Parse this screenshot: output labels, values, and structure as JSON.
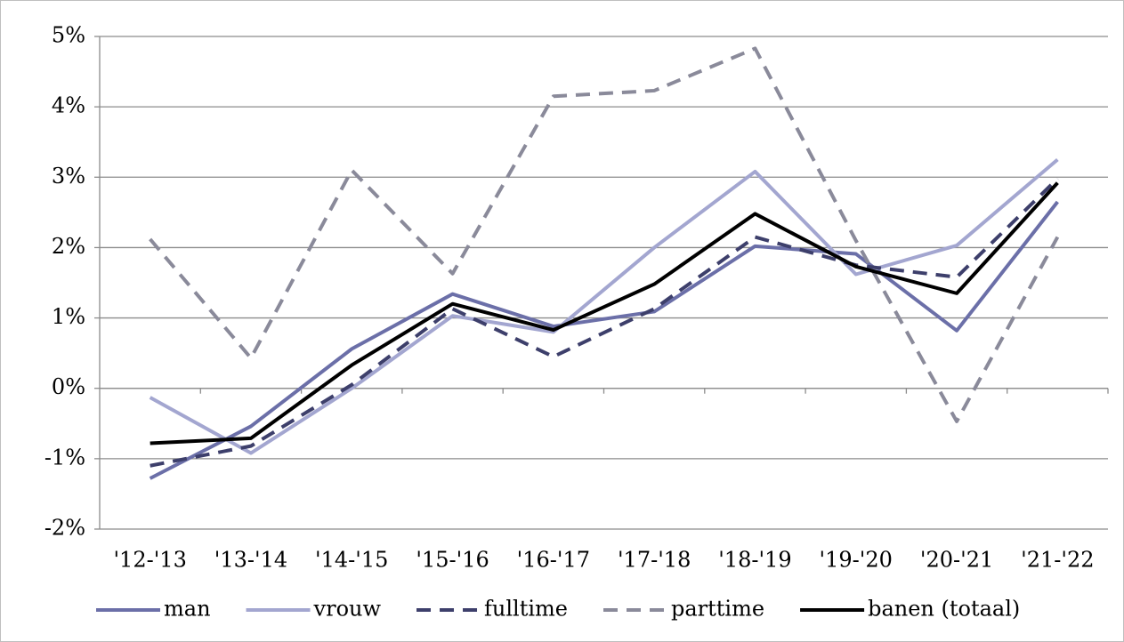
{
  "chart_data": {
    "type": "line",
    "categories": [
      "'12-'13",
      "'13-'14",
      "'14-'15",
      "'15-'16",
      "'16-'17",
      "'17-'18",
      "'18-'19",
      "'19-'20",
      "'20-'21",
      "'21-'22"
    ],
    "series": [
      {
        "name": "man",
        "color": "#6b6fa8",
        "style": "solid",
        "values": [
          -1.28,
          -0.54,
          0.56,
          1.34,
          0.88,
          1.09,
          2.02,
          1.91,
          0.82,
          2.65
        ]
      },
      {
        "name": "vrouw",
        "color": "#a3a6d0",
        "style": "solid",
        "values": [
          -0.13,
          -0.92,
          0.0,
          1.03,
          0.8,
          2.0,
          3.08,
          1.62,
          2.03,
          3.25
        ]
      },
      {
        "name": "fulltime",
        "color": "#3d3f6b",
        "style": "dashed",
        "values": [
          -1.1,
          -0.82,
          0.05,
          1.13,
          0.45,
          1.13,
          2.15,
          1.75,
          1.58,
          2.98
        ]
      },
      {
        "name": "parttime",
        "color": "#8a8a9a",
        "style": "dashed",
        "values": [
          2.12,
          0.43,
          3.1,
          1.63,
          4.15,
          4.23,
          4.83,
          2.1,
          -0.47,
          2.15
        ]
      },
      {
        "name": "banen (totaal)",
        "color": "#000000",
        "style": "solid",
        "values": [
          -0.78,
          -0.71,
          0.33,
          1.2,
          0.83,
          1.48,
          2.48,
          1.73,
          1.35,
          2.92
        ]
      }
    ],
    "ylim": [
      -2,
      5
    ],
    "yticks": [
      {
        "value": -2,
        "label": "-2%"
      },
      {
        "value": -1,
        "label": "-1%"
      },
      {
        "value": 0,
        "label": "0%"
      },
      {
        "value": 1,
        "label": "1%"
      },
      {
        "value": 2,
        "label": "2%"
      },
      {
        "value": 3,
        "label": "3%"
      },
      {
        "value": 4,
        "label": "4%"
      },
      {
        "value": 5,
        "label": "5%"
      }
    ],
    "grid": true,
    "legend": "bottom"
  }
}
